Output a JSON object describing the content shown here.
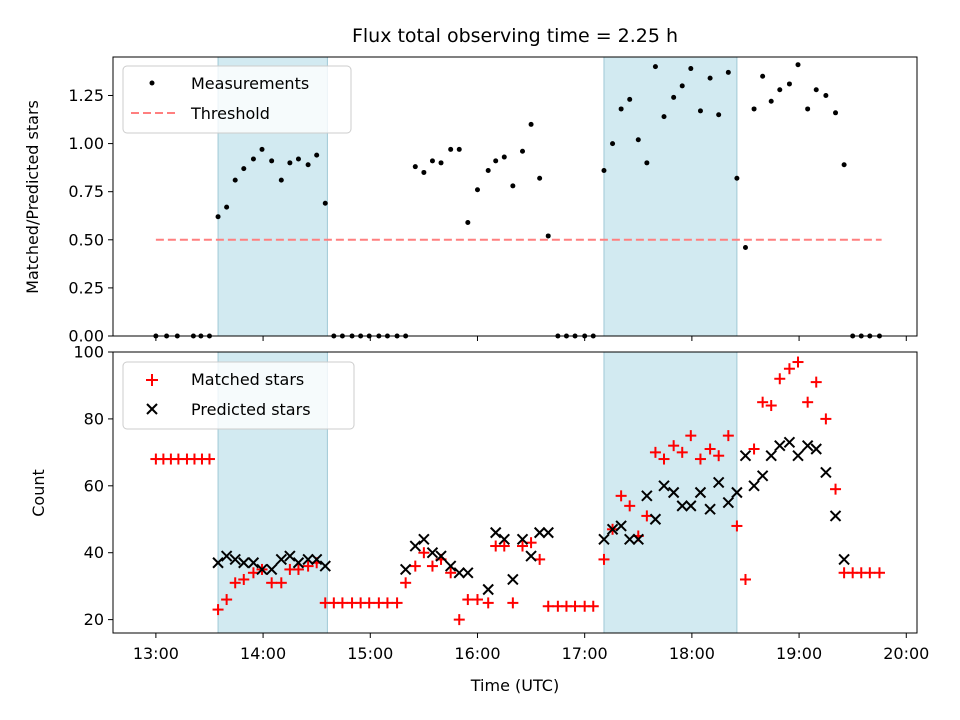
{
  "chart_data": {
    "type": "scatter",
    "title": "Flux total observing time = 2.25 h",
    "xlabel": "Time (UTC)",
    "x_ticks": [
      "13:00",
      "14:00",
      "15:00",
      "16:00",
      "17:00",
      "18:00",
      "19:00",
      "20:00"
    ],
    "xlim_hours": [
      12.6,
      20.1
    ],
    "shaded_regions_hours": [
      [
        13.58,
        14.6
      ],
      [
        17.18,
        18.42
      ]
    ],
    "colors": {
      "measurements": "#000000",
      "threshold": "#ff7f7f",
      "matched": "#ff0000",
      "predicted": "#000000",
      "shade": "#add8e6"
    },
    "top": {
      "ylabel": "Matched/Predicted stars",
      "ylim": [
        0,
        1.45
      ],
      "y_ticks": [
        "0.00",
        "0.25",
        "0.50",
        "0.75",
        "1.00",
        "1.25"
      ],
      "legend": [
        "Measurements",
        "Threshold"
      ],
      "threshold": 0.5,
      "threshold_range_hours": [
        13.0,
        19.77
      ],
      "series": [
        {
          "name": "Measurements",
          "x": [
            13.0,
            13.1,
            13.2,
            13.35,
            13.42,
            13.5,
            13.58,
            13.66,
            13.74,
            13.82,
            13.91,
            13.99,
            14.08,
            14.17,
            14.25,
            14.33,
            14.42,
            14.5,
            14.58,
            14.66,
            14.74,
            14.83,
            14.91,
            14.99,
            15.08,
            15.16,
            15.25,
            15.33,
            15.42,
            15.5,
            15.58,
            15.66,
            15.75,
            15.83,
            15.91,
            16.0,
            16.1,
            16.17,
            16.25,
            16.33,
            16.42,
            16.5,
            16.58,
            16.66,
            16.75,
            16.83,
            16.91,
            17.0,
            17.08,
            17.18,
            17.26,
            17.34,
            17.42,
            17.5,
            17.58,
            17.66,
            17.74,
            17.83,
            17.91,
            17.99,
            18.08,
            18.17,
            18.25,
            18.34,
            18.42,
            18.5,
            18.58,
            18.66,
            18.74,
            18.82,
            18.91,
            18.99,
            19.08,
            19.16,
            19.25,
            19.34,
            19.42,
            19.5,
            19.58,
            19.66,
            19.75
          ],
          "y": [
            0,
            0,
            0,
            0,
            0,
            0,
            0.62,
            0.67,
            0.81,
            0.87,
            0.92,
            0.97,
            0.91,
            0.81,
            0.9,
            0.92,
            0.89,
            0.94,
            0.69,
            0,
            0,
            0,
            0,
            0,
            0,
            0,
            0,
            0,
            0.88,
            0.85,
            0.91,
            0.9,
            0.97,
            0.97,
            0.59,
            0.76,
            0.86,
            0.91,
            0.93,
            0.78,
            0.96,
            1.1,
            0.82,
            0.52,
            0,
            0,
            0,
            0,
            0,
            0.86,
            1.0,
            1.18,
            1.23,
            1.02,
            0.9,
            1.4,
            1.14,
            1.24,
            1.3,
            1.39,
            1.17,
            1.34,
            1.15,
            1.37,
            0.82,
            0.46,
            1.18,
            1.35,
            1.22,
            1.28,
            1.31,
            1.41,
            1.18,
            1.28,
            1.25,
            1.16,
            0.89,
            0,
            0,
            0,
            0
          ]
        }
      ]
    },
    "bottom": {
      "ylabel": "Count",
      "ylim": [
        16,
        100
      ],
      "y_ticks": [
        "20",
        "40",
        "60",
        "80",
        "100"
      ],
      "legend": [
        "Matched stars",
        "Predicted stars"
      ],
      "series": [
        {
          "name": "Matched stars",
          "x": [
            13.0,
            13.07,
            13.14,
            13.21,
            13.29,
            13.36,
            13.43,
            13.5,
            13.58,
            13.66,
            13.74,
            13.82,
            13.91,
            13.99,
            14.08,
            14.17,
            14.25,
            14.33,
            14.42,
            14.5,
            14.58,
            14.66,
            14.74,
            14.83,
            14.91,
            14.99,
            15.08,
            15.16,
            15.25,
            15.33,
            15.42,
            15.5,
            15.58,
            15.66,
            15.75,
            15.83,
            15.91,
            16.0,
            16.1,
            16.17,
            16.25,
            16.33,
            16.42,
            16.5,
            16.58,
            16.66,
            16.75,
            16.83,
            16.91,
            17.0,
            17.08,
            17.18,
            17.26,
            17.34,
            17.42,
            17.5,
            17.58,
            17.66,
            17.74,
            17.83,
            17.91,
            17.99,
            18.08,
            18.17,
            18.25,
            18.34,
            18.42,
            18.5,
            18.58,
            18.66,
            18.74,
            18.82,
            18.91,
            18.99,
            19.08,
            19.16,
            19.25,
            19.34,
            19.42,
            19.5,
            19.58,
            19.66,
            19.75
          ],
          "y": [
            68,
            68,
            68,
            68,
            68,
            68,
            68,
            68,
            23,
            26,
            31,
            32,
            34,
            35,
            31,
            31,
            35,
            35,
            36,
            37,
            25,
            25,
            25,
            25,
            25,
            25,
            25,
            25,
            25,
            31,
            36,
            40,
            36,
            38,
            34,
            20,
            26,
            26,
            25,
            42,
            42,
            25,
            42,
            43,
            38,
            24,
            24,
            24,
            24,
            24,
            24,
            38,
            47,
            57,
            54,
            45,
            51,
            70,
            68,
            72,
            70,
            75,
            68,
            71,
            69,
            75,
            48,
            32,
            71,
            85,
            84,
            92,
            95,
            97,
            85,
            91,
            80,
            59,
            34,
            34,
            34,
            34,
            34
          ]
        },
        {
          "name": "Predicted stars",
          "x": [
            13.58,
            13.66,
            13.74,
            13.82,
            13.91,
            13.99,
            14.08,
            14.17,
            14.25,
            14.33,
            14.42,
            14.5,
            14.58,
            15.33,
            15.42,
            15.5,
            15.58,
            15.66,
            15.75,
            15.83,
            15.91,
            16.1,
            16.17,
            16.25,
            16.33,
            16.42,
            16.5,
            16.58,
            16.66,
            17.18,
            17.26,
            17.34,
            17.42,
            17.5,
            17.58,
            17.66,
            17.74,
            17.83,
            17.91,
            17.99,
            18.08,
            18.17,
            18.25,
            18.34,
            18.42,
            18.5,
            18.58,
            18.66,
            18.74,
            18.82,
            18.91,
            18.99,
            19.08,
            19.16,
            19.25,
            19.34,
            19.42
          ],
          "y": [
            37,
            39,
            38,
            37,
            37,
            35,
            35,
            38,
            39,
            37,
            38,
            38,
            36,
            35,
            42,
            44,
            40,
            39,
            36,
            34,
            34,
            29,
            46,
            44,
            32,
            44,
            39,
            46,
            46,
            44,
            47,
            48,
            44,
            44,
            57,
            50,
            60,
            58,
            54,
            54,
            58,
            53,
            61,
            55,
            58,
            69,
            60,
            63,
            69,
            72,
            73,
            69,
            72,
            71,
            64,
            51,
            38
          ]
        }
      ]
    }
  }
}
